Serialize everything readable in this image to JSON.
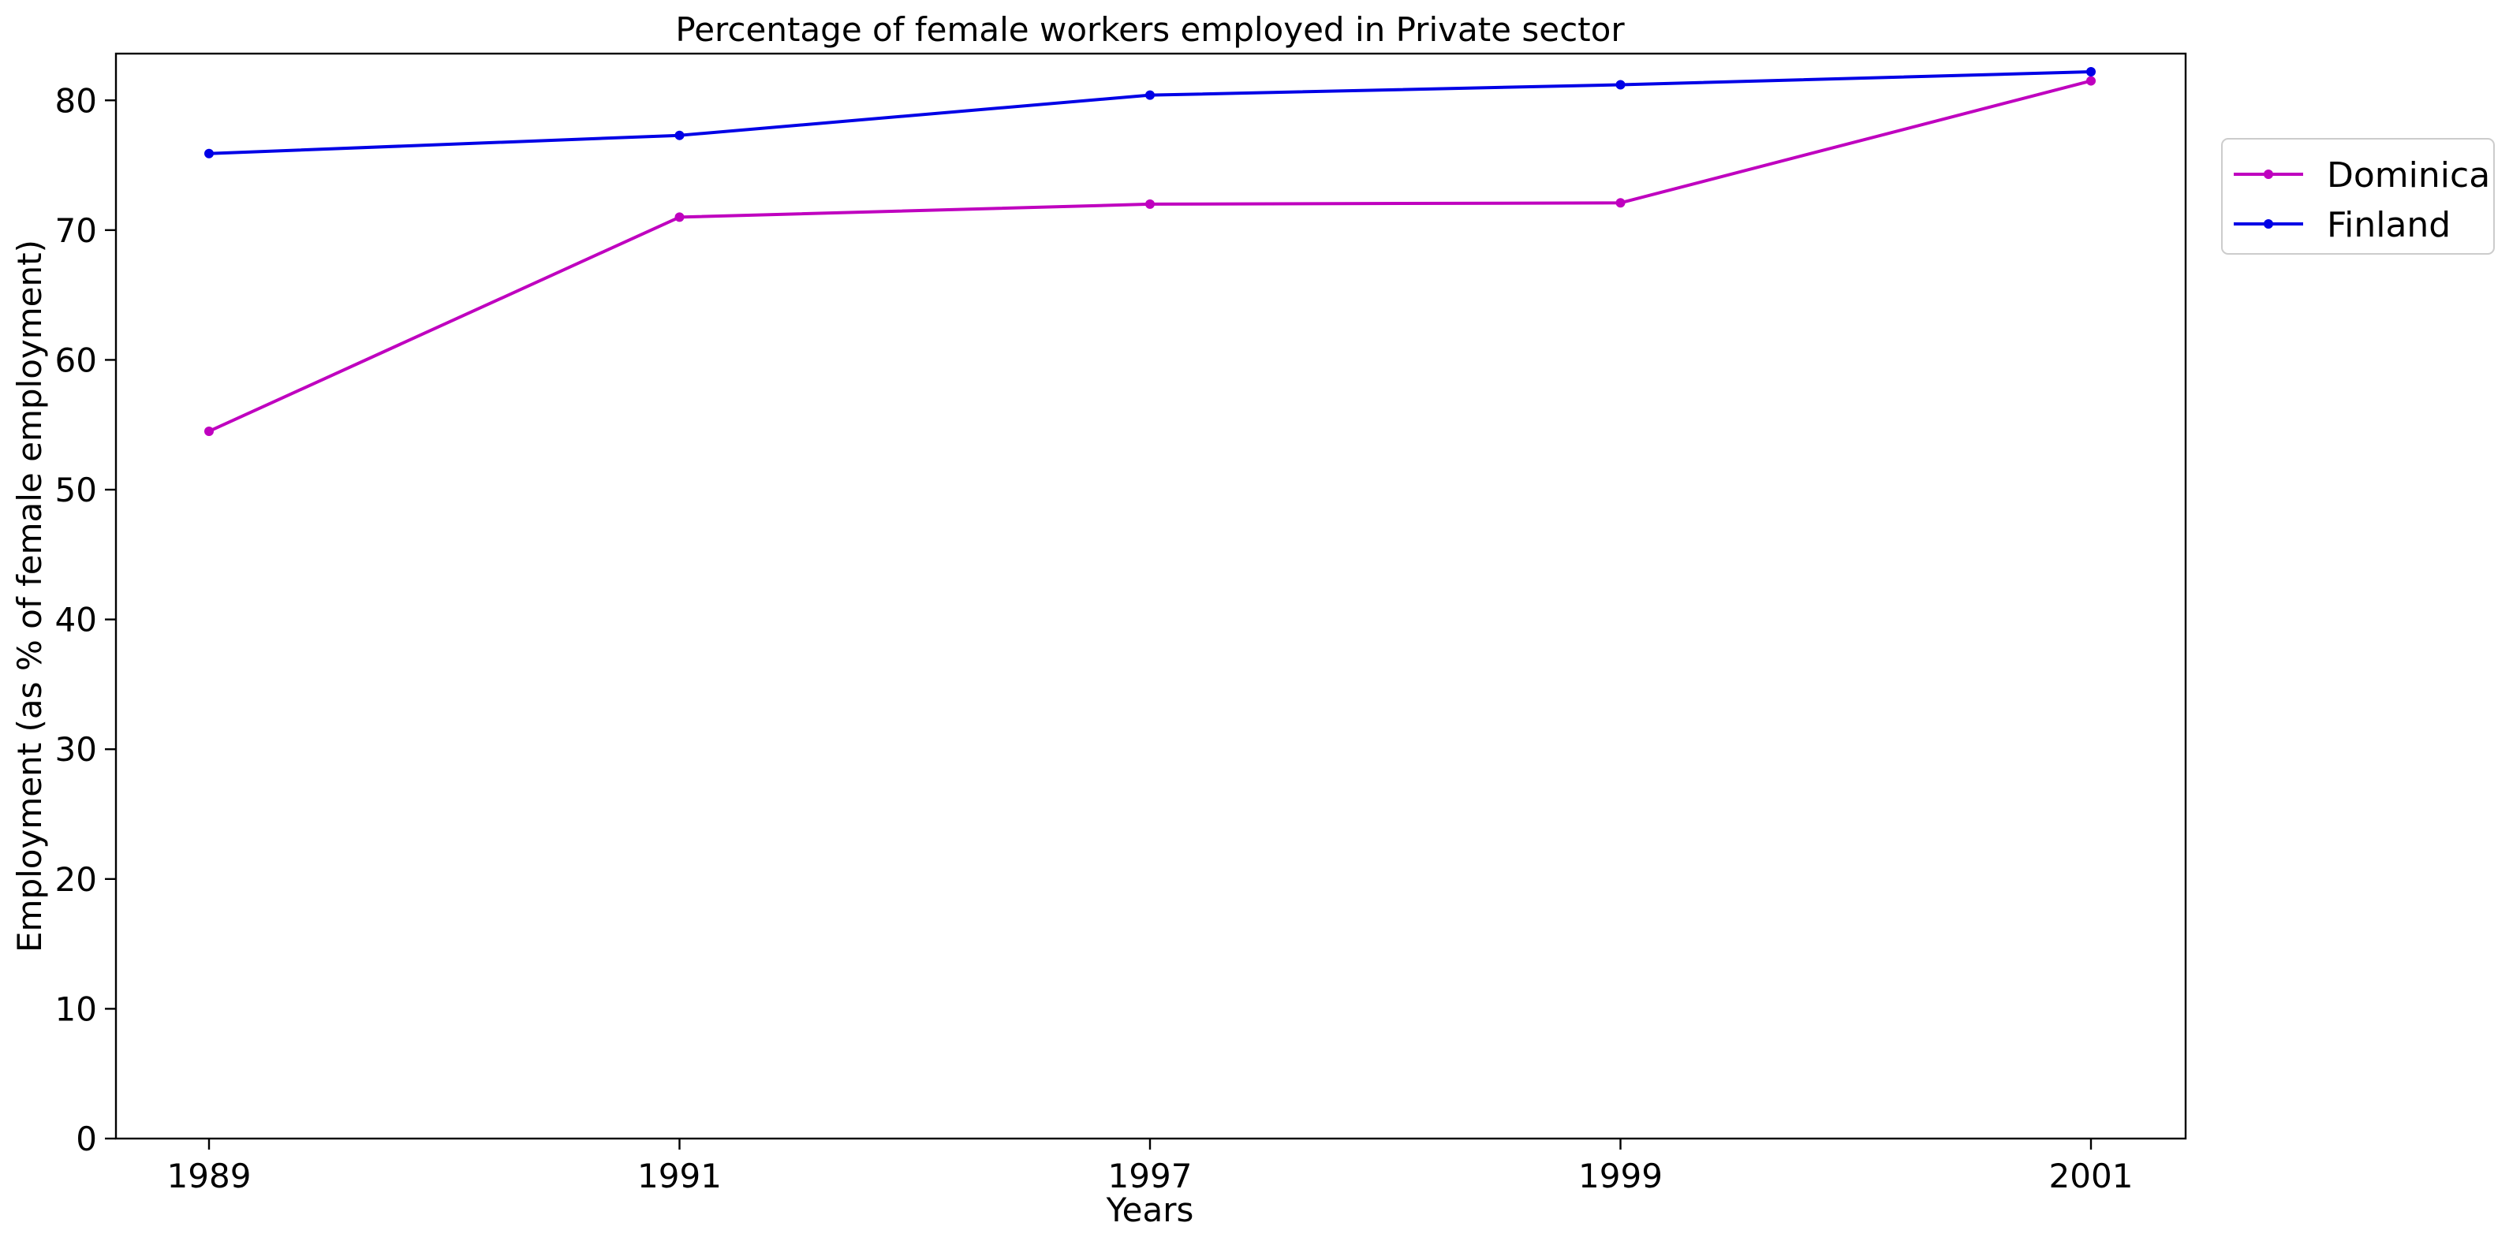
{
  "chart_data": {
    "type": "line",
    "title": "Percentage of female workers employed in Private sector",
    "xlabel": "Years",
    "ylabel": "Employment (as % of female employment)",
    "categories": [
      "1989",
      "1991",
      "1997",
      "1999",
      "2001"
    ],
    "series": [
      {
        "name": "Dominica",
        "color": "#bf00bf",
        "values": [
          54.5,
          71.0,
          72.0,
          72.1,
          81.5
        ]
      },
      {
        "name": "Finland",
        "color": "#0000e6",
        "values": [
          75.9,
          77.3,
          80.4,
          81.2,
          82.2
        ]
      }
    ],
    "yticks": [
      0,
      10,
      20,
      30,
      40,
      50,
      60,
      70,
      80
    ],
    "ylim": [
      0,
      83.6
    ],
    "grid": false,
    "legend_position": "outside-top-right"
  }
}
